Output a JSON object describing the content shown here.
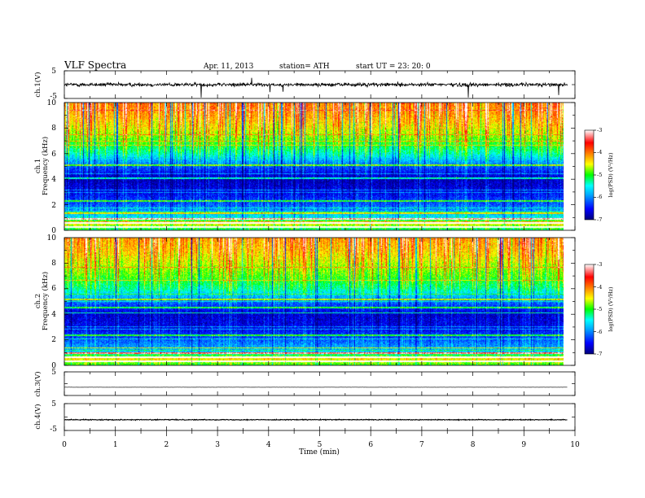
{
  "header": {
    "title": "VLF  Spectra",
    "date": "Apr. 11, 2013",
    "station": "station= ATH",
    "start_ut": "start  UT  =    23: 20: 0"
  },
  "chart_data": [
    {
      "type": "line",
      "name": "ch1-waveform",
      "ylabel": "ch.1(V)",
      "ylim": [
        -5,
        5
      ],
      "yticks": [
        "5",
        "-5"
      ],
      "level_V": 0.0,
      "noise_amplitude_V": 1.3,
      "impulsive_spikes": true
    },
    {
      "type": "heatmap",
      "name": "ch1-spectrogram",
      "ylabel_top": "ch.1",
      "ylabel": "Frequency  (kHz)",
      "ylim": [
        0,
        10
      ],
      "yticks": [
        "0",
        "2",
        "4",
        "6",
        "8",
        "10"
      ],
      "colorbar": {
        "label": "log(PSD) (V²/Hz)",
        "range": [
          -7,
          -3
        ],
        "ticks": [
          "-3",
          "-4",
          "-5",
          "-6",
          "-7"
        ]
      },
      "spectral_profile": {
        "freq_khz": [
          0,
          0.5,
          1,
          2,
          3,
          4,
          5,
          6,
          7,
          8,
          9,
          10
        ],
        "log_psd": [
          -5.2,
          -4.5,
          -5.6,
          -6.2,
          -6.6,
          -6.8,
          -6.2,
          -5.4,
          -4.9,
          -4.5,
          -4.2,
          -4.0
        ]
      },
      "persistent_lines_khz": [
        0.25,
        0.55,
        0.85,
        1.3,
        2.3,
        4.05,
        5.1
      ]
    },
    {
      "type": "heatmap",
      "name": "ch2-spectrogram",
      "ylabel_top": "ch.2",
      "ylabel": "Frequency  (kHz)",
      "ylim": [
        0,
        10
      ],
      "yticks": [
        "0",
        "2",
        "4",
        "6",
        "8",
        "10"
      ],
      "colorbar": {
        "label": "log(PSD) (V²/Hz)",
        "range": [
          -7,
          -3
        ],
        "ticks": [
          "-3",
          "-4",
          "-5",
          "-6",
          "-7"
        ]
      },
      "spectral_profile": {
        "freq_khz": [
          0,
          0.5,
          1,
          2,
          3,
          4,
          5,
          6,
          7,
          8,
          9,
          10
        ],
        "log_psd": [
          -5.0,
          -4.4,
          -5.7,
          -6.2,
          -6.6,
          -6.7,
          -6.1,
          -5.3,
          -4.9,
          -4.6,
          -4.3,
          -4.1
        ]
      },
      "persistent_lines_khz": [
        0.3,
        0.6,
        0.95,
        1.35,
        2.35,
        4.1,
        4.5,
        5.15
      ]
    },
    {
      "type": "line",
      "name": "ch3-waveform",
      "ylabel": "ch.3(V)",
      "ylim": [
        -5,
        5
      ],
      "yticks": [
        "5"
      ],
      "level_V": -1.5,
      "noise_amplitude_V": 0.05,
      "impulsive_spikes": false
    },
    {
      "type": "line",
      "name": "ch4-waveform",
      "ylabel": "ch.4(V)",
      "ylim": [
        -5,
        5
      ],
      "yticks": [
        "5",
        "-5"
      ],
      "level_V": -1.0,
      "noise_amplitude_V": 0.3,
      "impulsive_spikes": false
    }
  ],
  "time_axis": {
    "xlabel": "Time  (min)",
    "xlim": [
      0,
      10
    ],
    "data_end_min": 9.85,
    "ticks": [
      "0",
      "1",
      "2",
      "3",
      "4",
      "5",
      "6",
      "7",
      "8",
      "9",
      "10"
    ]
  },
  "colormap": [
    "#00007a",
    "#0000ff",
    "#00aaff",
    "#00ffff",
    "#00ff00",
    "#ffff00",
    "#ff7f00",
    "#ff0000",
    "#ffffff"
  ]
}
